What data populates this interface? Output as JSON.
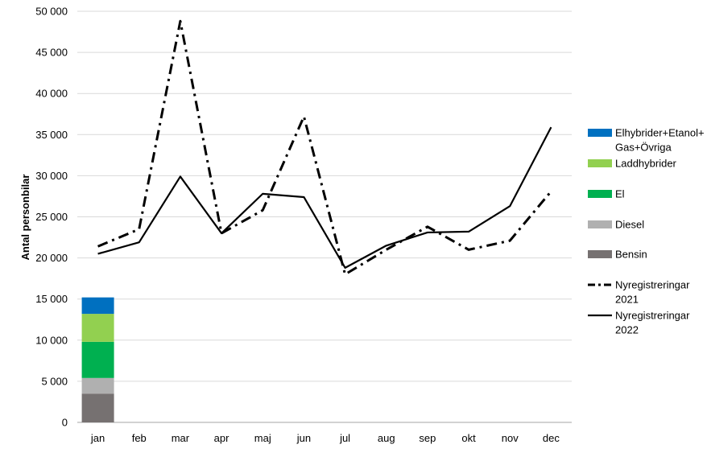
{
  "chart_data": {
    "type": "line",
    "ylabel": "Antal personbilar",
    "xlabel": "",
    "ylim": [
      0,
      50000
    ],
    "yticks": [
      0,
      5000,
      10000,
      15000,
      20000,
      25000,
      30000,
      35000,
      40000,
      45000,
      50000
    ],
    "ytick_labels": [
      "0",
      "5 000",
      "10 000",
      "15 000",
      "20 000",
      "25 000",
      "30 000",
      "35 000",
      "40 000",
      "45 000",
      "50 000"
    ],
    "categories": [
      "jan",
      "feb",
      "mar",
      "apr",
      "maj",
      "jun",
      "jul",
      "aug",
      "sep",
      "okt",
      "nov",
      "dec"
    ],
    "grid": true,
    "legend_position": "right",
    "stacked_bar": {
      "category": "jan",
      "series": [
        {
          "name": "Bensin",
          "value": 3500,
          "color": "#767171"
        },
        {
          "name": "Diesel",
          "value": 1900,
          "color": "#b0b0b0"
        },
        {
          "name": "El",
          "value": 4400,
          "color": "#00b050"
        },
        {
          "name": "Laddhybrider",
          "value": 3400,
          "color": "#92d050"
        },
        {
          "name": "Elhybrider+Etanol+ Gas+Övriga",
          "value": 2000,
          "color": "#0070c0"
        }
      ]
    },
    "series": [
      {
        "name": "Nyregistreringar 2021",
        "style": "dash-dot",
        "color": "#000000",
        "values": [
          21400,
          23500,
          48800,
          23000,
          25800,
          37200,
          18000,
          21000,
          23800,
          21000,
          22100,
          28100
        ]
      },
      {
        "name": "Nyregistreringar 2022",
        "style": "solid",
        "color": "#000000",
        "values": [
          20500,
          21900,
          29900,
          23000,
          27800,
          27400,
          18800,
          21500,
          23100,
          23200,
          26300,
          35900
        ]
      }
    ],
    "legend": [
      {
        "label_lines": [
          "Elhybrider+Etanol+",
          "Gas+Övriga"
        ],
        "kind": "box",
        "color": "#0070c0"
      },
      {
        "label_lines": [
          "Laddhybrider"
        ],
        "kind": "box",
        "color": "#92d050"
      },
      {
        "label_lines": [
          "El"
        ],
        "kind": "box",
        "color": "#00b050"
      },
      {
        "label_lines": [
          "Diesel"
        ],
        "kind": "box",
        "color": "#b0b0b0"
      },
      {
        "label_lines": [
          "Bensin"
        ],
        "kind": "box",
        "color": "#767171"
      },
      {
        "label_lines": [
          "Nyregistreringar",
          "2021"
        ],
        "kind": "dash-dot",
        "color": "#000000"
      },
      {
        "label_lines": [
          "Nyregistreringar",
          "2022"
        ],
        "kind": "solid",
        "color": "#000000"
      }
    ]
  }
}
